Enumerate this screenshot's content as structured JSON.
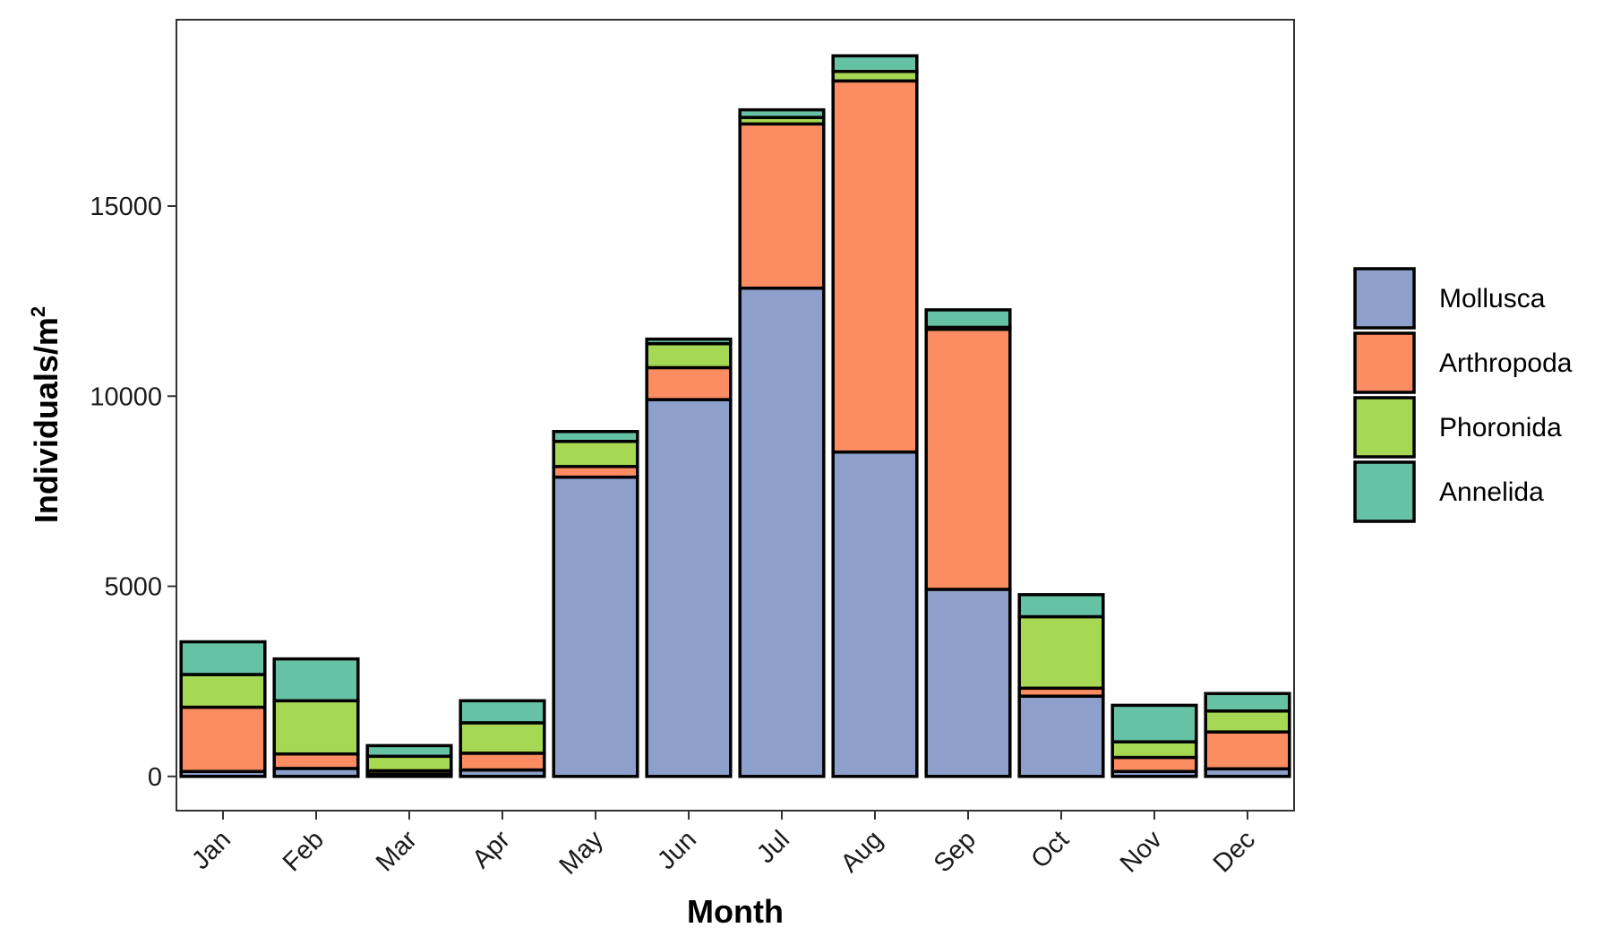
{
  "chart_data": {
    "type": "bar",
    "stacked": true,
    "categories": [
      "Jan",
      "Feb",
      "Mar",
      "Apr",
      "May",
      "Jun",
      "Jul",
      "Aug",
      "Sep",
      "Oct",
      "Nov",
      "Dec"
    ],
    "series": [
      {
        "name": "Mollusca",
        "color": "#8DA0CB",
        "values": [
          130,
          210,
          60,
          170,
          7870,
          9910,
          12840,
          8530,
          4920,
          2110,
          130,
          200
        ]
      },
      {
        "name": "Arthropoda",
        "color": "#FC8D62",
        "values": [
          1690,
          380,
          90,
          440,
          280,
          840,
          4320,
          9760,
          6840,
          210,
          370,
          970
        ]
      },
      {
        "name": "Phoronida",
        "color": "#A6D854",
        "values": [
          860,
          1400,
          380,
          800,
          660,
          630,
          170,
          250,
          50,
          1880,
          410,
          550
        ]
      },
      {
        "name": "Annelida",
        "color": "#66C2A5",
        "values": [
          860,
          1100,
          280,
          580,
          260,
          120,
          200,
          410,
          460,
          580,
          960,
          460
        ]
      }
    ],
    "xlabel": "Month",
    "ylabel": "Individuals/m",
    "ylabel_superscript": "2",
    "yticks": [
      "0",
      "5000",
      "10000",
      "15000"
    ],
    "ytick_values": [
      0,
      5000,
      10000,
      15000
    ],
    "ylim": [
      -900,
      19900
    ],
    "grid": false,
    "legend_position": "right",
    "legend_order": [
      "Mollusca",
      "Arthropoda",
      "Phoronida",
      "Annelida"
    ]
  }
}
